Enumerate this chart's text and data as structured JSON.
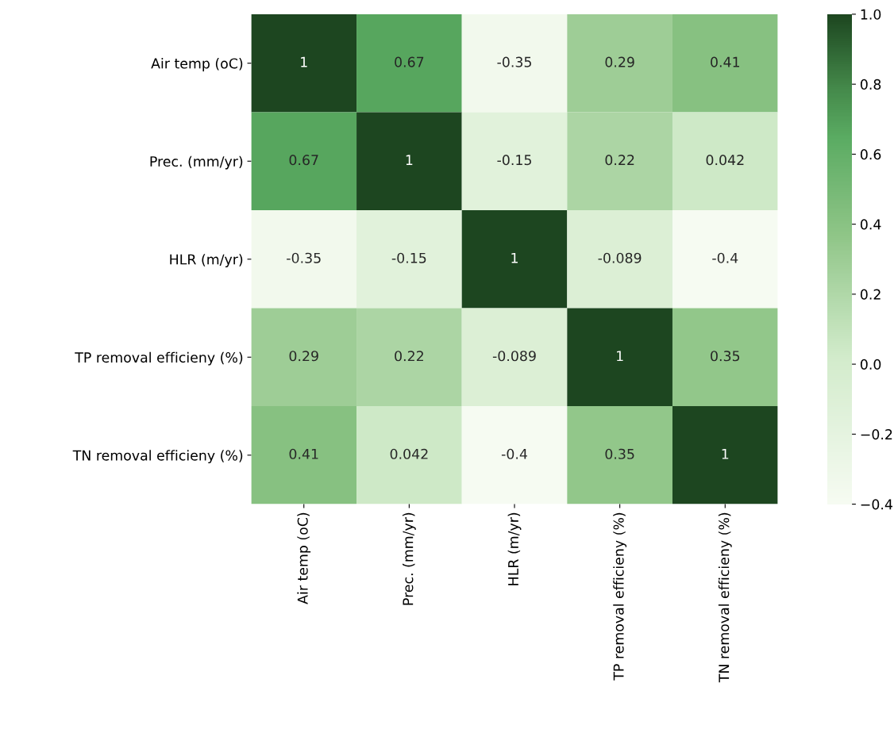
{
  "chart_data": {
    "type": "heatmap",
    "categories": [
      "Air temp (oC)",
      "Prec. (mm/yr)",
      "HLR (m/yr)",
      "TP removal efficieny (%)",
      "TN removal efficieny (%)"
    ],
    "y_categories": [
      "Air temp (oC)",
      "Prec. (mm/yr)",
      "HLR (m/yr)",
      "TP removal efficieny (%)",
      "TN removal efficieny (%)"
    ],
    "cells": [
      [
        1,
        0.67,
        -0.35,
        0.29,
        0.41
      ],
      [
        0.67,
        1,
        -0.15,
        0.22,
        0.042
      ],
      [
        -0.35,
        -0.15,
        1,
        -0.089,
        -0.4
      ],
      [
        0.29,
        0.22,
        -0.089,
        1,
        0.35
      ],
      [
        0.41,
        0.042,
        -0.4,
        0.35,
        1
      ]
    ],
    "clim": [
      -0.4,
      1.0
    ],
    "cticks": [
      {
        "value": -0.4,
        "label": "−0.4"
      },
      {
        "value": -0.2,
        "label": "−0.2"
      },
      {
        "value": 0.0,
        "label": "0.0"
      },
      {
        "value": 0.2,
        "label": "0.2"
      },
      {
        "value": 0.4,
        "label": "0.4"
      },
      {
        "value": 0.6,
        "label": "0.6"
      },
      {
        "value": 0.8,
        "label": "0.8"
      },
      {
        "value": 1.0,
        "label": "1.0"
      }
    ],
    "data_labels": true
  }
}
